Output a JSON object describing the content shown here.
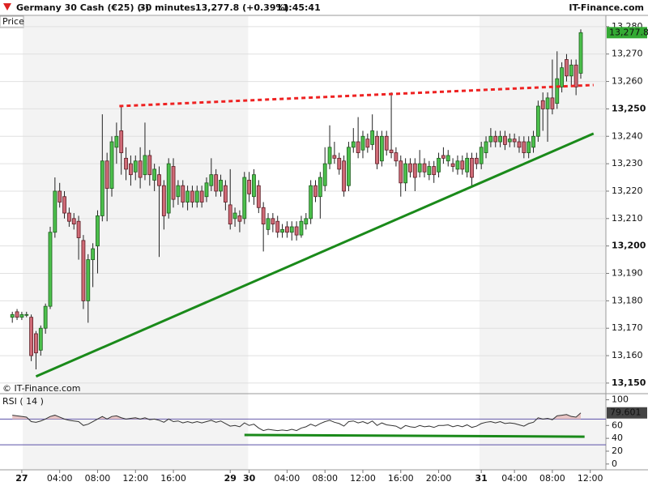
{
  "header": {
    "instrument": "Germany 30 Cash (€25) (-)",
    "timeframe": "30 minutes",
    "quote": "13,277.8 (+0.39%)",
    "time": "11:45:41",
    "brand": "IT-Finance.com"
  },
  "chart_data": [
    {
      "type": "candlestick",
      "panel_label": "Price",
      "watermark": "© IT-Finance.com",
      "up_color": "#4cc04c",
      "down_color": "#cf6a76",
      "last_label": "13,277.8",
      "last_label_color": "#33aa33",
      "grid": true,
      "shaded_x": [
        [
          2.2,
          49.8
        ],
        [
          98.6,
          125.3
        ]
      ],
      "xlim": [
        -2.6,
        125.3
      ],
      "xticks": [
        {
          "value": 2,
          "label": "27"
        },
        {
          "value": 10,
          "label": "04:00"
        },
        {
          "value": 18,
          "label": "08:00"
        },
        {
          "value": 26,
          "label": "12:00"
        },
        {
          "value": 34,
          "label": "16:00"
        },
        {
          "value": 46,
          "label": "29"
        },
        {
          "value": 50,
          "label": "30"
        },
        {
          "value": 58,
          "label": "04:00"
        },
        {
          "value": 66,
          "label": "08:00"
        },
        {
          "value": 74,
          "label": "12:00"
        },
        {
          "value": 82,
          "label": "16:00"
        },
        {
          "value": 90,
          "label": "20:00"
        },
        {
          "value": 99,
          "label": "31"
        },
        {
          "value": 106,
          "label": "04:00"
        },
        {
          "value": 114,
          "label": "08:00"
        },
        {
          "value": 122,
          "label": "12:00"
        }
      ],
      "ylim": [
        13148.5,
        13283.8
      ],
      "yticks": [
        {
          "value": 13150,
          "label": "13,150"
        },
        {
          "value": 13160,
          "label": "13,160"
        },
        {
          "value": 13170,
          "label": "13,170"
        },
        {
          "value": 13180,
          "label": "13,180"
        },
        {
          "value": 13190,
          "label": "13,190"
        },
        {
          "value": 13200,
          "label": "13,200"
        },
        {
          "value": 13210,
          "label": "13,210"
        },
        {
          "value": 13220,
          "label": "13,220"
        },
        {
          "value": 13230,
          "label": "13,230"
        },
        {
          "value": 13240,
          "label": "13,240"
        },
        {
          "value": 13250,
          "label": "13,250"
        },
        {
          "value": 13260,
          "label": "13,260"
        },
        {
          "value": 13270,
          "label": "13,270"
        },
        {
          "value": 13280,
          "label": "13,280"
        }
      ],
      "trendlines": [
        {
          "color": "#1a8a1a",
          "x": [
            5,
            122.7
          ],
          "y": [
            13152.4,
            13241
          ]
        },
        {
          "color": "#ee2222",
          "dash": true,
          "x": [
            22.6,
            122.7
          ],
          "y": [
            13251,
            13258.7
          ]
        }
      ],
      "ohlc": [
        [
          13174,
          13176,
          13172,
          13175
        ],
        [
          13176,
          13177,
          13173,
          13174
        ],
        [
          13174,
          13176,
          13173,
          13175
        ],
        [
          13175,
          13176,
          13174,
          13175
        ],
        [
          13174,
          13175,
          13158,
          13160
        ],
        [
          13168,
          13169,
          13155,
          13161
        ],
        [
          13162,
          13171,
          13160,
          13170
        ],
        [
          13170,
          13179,
          13168,
          13178
        ],
        [
          13178,
          13207,
          13177,
          13205
        ],
        [
          13205,
          13225,
          13203,
          13220
        ],
        [
          13220,
          13223,
          13214,
          13216
        ],
        [
          13218,
          13220,
          13210,
          13212
        ],
        [
          13212,
          13214,
          13207,
          13209
        ],
        [
          13210,
          13212,
          13206,
          13208
        ],
        [
          13209,
          13211,
          13195,
          13203
        ],
        [
          13202,
          13204,
          13177,
          13180
        ],
        [
          13180,
          13197,
          13172,
          13195
        ],
        [
          13195,
          13201,
          13185,
          13199
        ],
        [
          13200,
          13213,
          13190,
          13211
        ],
        [
          13211,
          13248,
          13209,
          13231
        ],
        [
          13231,
          13234,
          13209,
          13221
        ],
        [
          13221,
          13240,
          13218,
          13238
        ],
        [
          13236,
          13245,
          13230,
          13240
        ],
        [
          13242,
          13251,
          13226,
          13234
        ],
        [
          13232,
          13236,
          13224,
          13228
        ],
        [
          13230,
          13233,
          13222,
          13226
        ],
        [
          13227,
          13233,
          13224,
          13231
        ],
        [
          13231,
          13236,
          13221,
          13225
        ],
        [
          13226,
          13245,
          13224,
          13233
        ],
        [
          13233,
          13235,
          13222,
          13226
        ],
        [
          13224,
          13230,
          13220,
          13228
        ],
        [
          13226,
          13229,
          13196,
          13222
        ],
        [
          13222,
          13224,
          13206,
          13211
        ],
        [
          13212,
          13232,
          13210,
          13230
        ],
        [
          13229,
          13232,
          13214,
          13217
        ],
        [
          13218,
          13224,
          13215,
          13222
        ],
        [
          13222,
          13224,
          13214,
          13216
        ],
        [
          13216,
          13222,
          13213,
          13220
        ],
        [
          13220,
          13222,
          13214,
          13216
        ],
        [
          13216,
          13222,
          13214,
          13220
        ],
        [
          13220,
          13222,
          13214,
          13216
        ],
        [
          13218,
          13225,
          13216,
          13223
        ],
        [
          13222,
          13232,
          13220,
          13226
        ],
        [
          13226,
          13228,
          13218,
          13220
        ],
        [
          13220,
          13226,
          13218,
          13224
        ],
        [
          13222,
          13224,
          13213,
          13216
        ],
        [
          13215,
          13228,
          13206,
          13208
        ],
        [
          13210,
          13214,
          13207,
          13212
        ],
        [
          13211,
          13213,
          13205,
          13209
        ],
        [
          13210,
          13227,
          13208,
          13225
        ],
        [
          13224,
          13227,
          13216,
          13219
        ],
        [
          13218,
          13228,
          13215,
          13226
        ],
        [
          13222,
          13224,
          13212,
          13214
        ],
        [
          13214,
          13216,
          13198,
          13208
        ],
        [
          13206,
          13212,
          13204,
          13210
        ],
        [
          13210,
          13212,
          13205,
          13208
        ],
        [
          13209,
          13211,
          13203,
          13205
        ],
        [
          13205,
          13208,
          13203,
          13206
        ],
        [
          13207,
          13209,
          13203,
          13205
        ],
        [
          13205,
          13209,
          13202,
          13207
        ],
        [
          13207,
          13209,
          13202,
          13204
        ],
        [
          13204,
          13211,
          13203,
          13209
        ],
        [
          13208,
          13212,
          13206,
          13210
        ],
        [
          13210,
          13224,
          13208,
          13222
        ],
        [
          13222,
          13224,
          13216,
          13218
        ],
        [
          13218,
          13227,
          13210,
          13225
        ],
        [
          13222,
          13236,
          13220,
          13230
        ],
        [
          13230,
          13244,
          13228,
          13236
        ],
        [
          13233,
          13238,
          13230,
          13232
        ],
        [
          13232,
          13234,
          13226,
          13228
        ],
        [
          13231,
          13233,
          13218,
          13220
        ],
        [
          13222,
          13238,
          13220,
          13236
        ],
        [
          13236,
          13243,
          13234,
          13238
        ],
        [
          13238,
          13247,
          13232,
          13234
        ],
        [
          13235,
          13242,
          13232,
          13240
        ],
        [
          13239,
          13241,
          13234,
          13236
        ],
        [
          13237,
          13248,
          13235,
          13242
        ],
        [
          13240,
          13242,
          13228,
          13230
        ],
        [
          13231,
          13242,
          13229,
          13240
        ],
        [
          13240,
          13242,
          13233,
          13235
        ],
        [
          13235,
          13256,
          13232,
          13234
        ],
        [
          13234,
          13236,
          13229,
          13231
        ],
        [
          13231,
          13233,
          13218,
          13223
        ],
        [
          13223,
          13232,
          13220,
          13230
        ],
        [
          13230,
          13232,
          13225,
          13227
        ],
        [
          13230,
          13232,
          13220,
          13225
        ],
        [
          13227,
          13235,
          13225,
          13230
        ],
        [
          13230,
          13232,
          13225,
          13227
        ],
        [
          13226,
          13231,
          13224,
          13229
        ],
        [
          13229,
          13231,
          13223,
          13226
        ],
        [
          13227,
          13234,
          13225,
          13232
        ],
        [
          13233,
          13236,
          13230,
          13232
        ],
        [
          13231,
          13235,
          13229,
          13233
        ],
        [
          13230,
          13232,
          13227,
          13229
        ],
        [
          13228,
          13233,
          13226,
          13231
        ],
        [
          13231,
          13233,
          13226,
          13228
        ],
        [
          13227,
          13234,
          13225,
          13232
        ],
        [
          13232,
          13234,
          13222,
          13225
        ],
        [
          13232,
          13234,
          13228,
          13230
        ],
        [
          13230,
          13238,
          13228,
          13236
        ],
        [
          13234,
          13240,
          13232,
          13238
        ],
        [
          13238,
          13243,
          13236,
          13240
        ],
        [
          13240,
          13242,
          13236,
          13238
        ],
        [
          13238,
          13242,
          13236,
          13240
        ],
        [
          13240,
          13242,
          13235,
          13237
        ],
        [
          13238,
          13241,
          13236,
          13239
        ],
        [
          13239,
          13241,
          13236,
          13238
        ],
        [
          13238,
          13240,
          13234,
          13236
        ],
        [
          13238,
          13240,
          13232,
          13234
        ],
        [
          13234,
          13240,
          13232,
          13238
        ],
        [
          13236,
          13242,
          13234,
          13240
        ],
        [
          13240,
          13253,
          13238,
          13251
        ],
        [
          13253,
          13256,
          13242,
          13250
        ],
        [
          13250,
          13256,
          13238,
          13254
        ],
        [
          13254,
          13268,
          13248,
          13250
        ],
        [
          13252,
          13271,
          13250,
          13261
        ],
        [
          13258,
          13267,
          13256,
          13265
        ],
        [
          13268,
          13270,
          13260,
          13262
        ],
        [
          13262,
          13268,
          13258,
          13266
        ],
        [
          13266,
          13268,
          13255,
          13258
        ],
        [
          13263,
          13279,
          13261,
          13277.8
        ]
      ]
    },
    {
      "type": "rsi",
      "panel_label": "RSI ( 14 )",
      "color": "#333333",
      "fill_color": "#e8c4c4",
      "level_color": "#5a50a8",
      "levels": [
        70,
        30
      ],
      "ylim": [
        -9,
        107
      ],
      "yticks": [
        0,
        20,
        40,
        60,
        100
      ],
      "last_label_color": "#444444",
      "trendlines": [
        {
          "color": "#1a8a1a",
          "x": [
            49,
            120.8
          ],
          "y": [
            45.2,
            42.6
          ]
        }
      ],
      "values": [
        76,
        75,
        74,
        73,
        66,
        65,
        67,
        70,
        74,
        76,
        73,
        70,
        68,
        67,
        66,
        60,
        62,
        66,
        70,
        74,
        70,
        74,
        75,
        72,
        70,
        71,
        72,
        70,
        72,
        69,
        70,
        68,
        65,
        70,
        66,
        67,
        64,
        66,
        64,
        66,
        64,
        66,
        68,
        65,
        67,
        63,
        59,
        60,
        58,
        64,
        60,
        62,
        56,
        52,
        54,
        53,
        52,
        53,
        52,
        54,
        52,
        56,
        58,
        62,
        59,
        63,
        66,
        68,
        65,
        63,
        59,
        66,
        67,
        64,
        66,
        63,
        67,
        60,
        64,
        61,
        60,
        59,
        55,
        60,
        58,
        57,
        60,
        58,
        59,
        57,
        60,
        60,
        61,
        58,
        60,
        58,
        61,
        57,
        59,
        63,
        65,
        66,
        64,
        66,
        63,
        64,
        63,
        61,
        59,
        63,
        65,
        72,
        70,
        71,
        69,
        75,
        76,
        77,
        74,
        73,
        79.601
      ]
    }
  ]
}
